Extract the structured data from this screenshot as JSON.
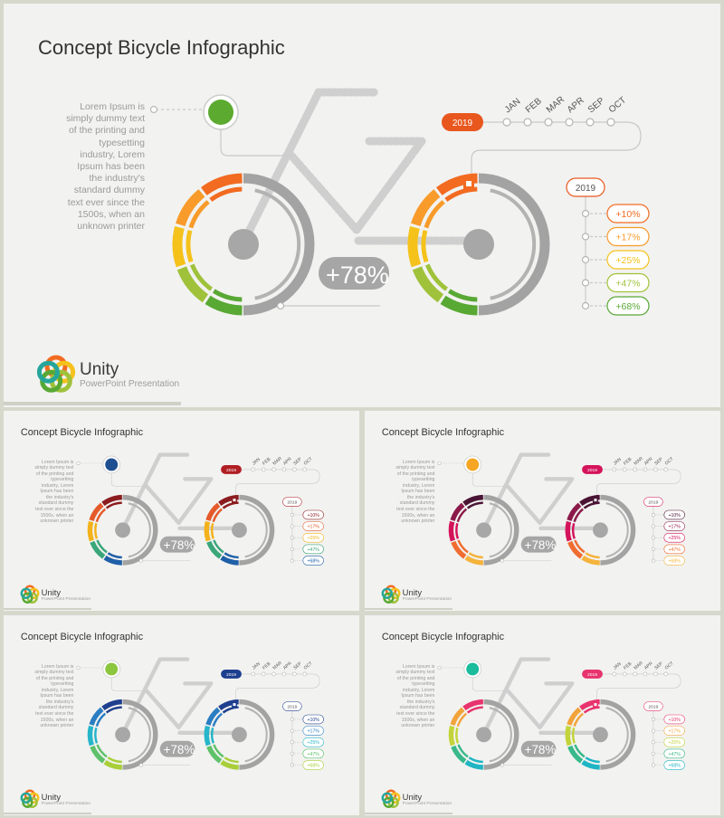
{
  "slides": [
    {
      "title": "Concept Bicycle Infographic",
      "body": "Lorem Ipsum is simply dummy text of the printing and typesetting industry, Lorem Ipsum has been the industry's standard dummy text ever since the 1500s, when an unknown printer",
      "badge_value": "+78%",
      "year_label": "2019",
      "legend_title": "2019",
      "months": [
        "JAN",
        "FEB",
        "MAR",
        "APR",
        "SEP",
        "OCT"
      ],
      "legend_values": [
        "+10%",
        "+17%",
        "+25%",
        "+47%",
        "+68%"
      ],
      "brand_name": "Unity",
      "brand_sub": "PowerPoint Presentation",
      "colors": {
        "accent": "#e8571e",
        "dot": "#5caa2f",
        "ring": [
          "#f26b21",
          "#f89b2a",
          "#f5c21b",
          "#9fc23a",
          "#58a834"
        ]
      }
    },
    {
      "title": "Concept Bicycle Infographic",
      "body": "Lorem Ipsum is simply dummy text of the printing and typesetting industry, Lorem Ipsum has been the industry's standard dummy text ever since the 1500s, when an unknown printer",
      "badge_value": "+78%",
      "year_label": "2019",
      "legend_title": "2019",
      "months": [
        "JAN",
        "FEB",
        "MAR",
        "APR",
        "SEP",
        "OCT"
      ],
      "legend_values": [
        "+10%",
        "+17%",
        "+25%",
        "+47%",
        "+68%"
      ],
      "brand_name": "Unity",
      "brand_sub": "PowerPoint Presentation",
      "colors": {
        "accent": "#b01e23",
        "dot": "#1d4f91",
        "ring": [
          "#8b1c1f",
          "#e45a2a",
          "#f3b21b",
          "#3aa67a",
          "#1f5fa8"
        ]
      }
    },
    {
      "title": "Concept Bicycle Infographic",
      "body": "Lorem Ipsum is simply dummy text of the printing and typesetting industry, Lorem Ipsum has been the industry's standard dummy text ever since the 1500s, when an unknown printer",
      "badge_value": "+78%",
      "year_label": "2019",
      "legend_title": "2019",
      "months": [
        "JAN",
        "FEB",
        "MAR",
        "APR",
        "SEP",
        "OCT"
      ],
      "legend_values": [
        "+10%",
        "+17%",
        "+25%",
        "+47%",
        "+68%"
      ],
      "brand_name": "Unity",
      "brand_sub": "PowerPoint Presentation",
      "colors": {
        "accent": "#d4145a",
        "dot": "#f5a623",
        "ring": [
          "#4a1535",
          "#8b1a4a",
          "#d4145a",
          "#f06c30",
          "#f5b33c"
        ]
      }
    },
    {
      "title": "Concept Bicycle Infographic",
      "body": "Lorem Ipsum is simply dummy text of the printing and typesetting industry, Lorem Ipsum has been the industry's standard dummy text ever since the 1500s, when an unknown printer",
      "badge_value": "+78%",
      "year_label": "2019",
      "legend_title": "2019",
      "months": [
        "JAN",
        "FEB",
        "MAR",
        "APR",
        "SEP",
        "OCT"
      ],
      "legend_values": [
        "+10%",
        "+17%",
        "+25%",
        "+47%",
        "+68%"
      ],
      "brand_name": "Unity",
      "brand_sub": "PowerPoint Presentation",
      "colors": {
        "accent": "#1c3f8f",
        "dot": "#8cc63f",
        "ring": [
          "#1f3f8f",
          "#2a7dc2",
          "#26b5c9",
          "#5fc16a",
          "#a8cf3a"
        ]
      }
    },
    {
      "title": "Concept Bicycle Infographic",
      "body": "Lorem Ipsum is simply dummy text of the printing and typesetting industry, Lorem Ipsum has been the industry's standard dummy text ever since the 1500s, when an unknown printer",
      "badge_value": "+78%",
      "year_label": "2019",
      "legend_title": "2019",
      "months": [
        "JAN",
        "FEB",
        "MAR",
        "APR",
        "SEP",
        "OCT"
      ],
      "legend_values": [
        "+10%",
        "+17%",
        "+25%",
        "+47%",
        "+68%"
      ],
      "brand_name": "Unity",
      "brand_sub": "PowerPoint Presentation",
      "colors": {
        "accent": "#e8336d",
        "dot": "#1abc9c",
        "ring": [
          "#e8336d",
          "#f2a33a",
          "#c3d43a",
          "#39b98a",
          "#1fb5c4"
        ]
      }
    }
  ]
}
